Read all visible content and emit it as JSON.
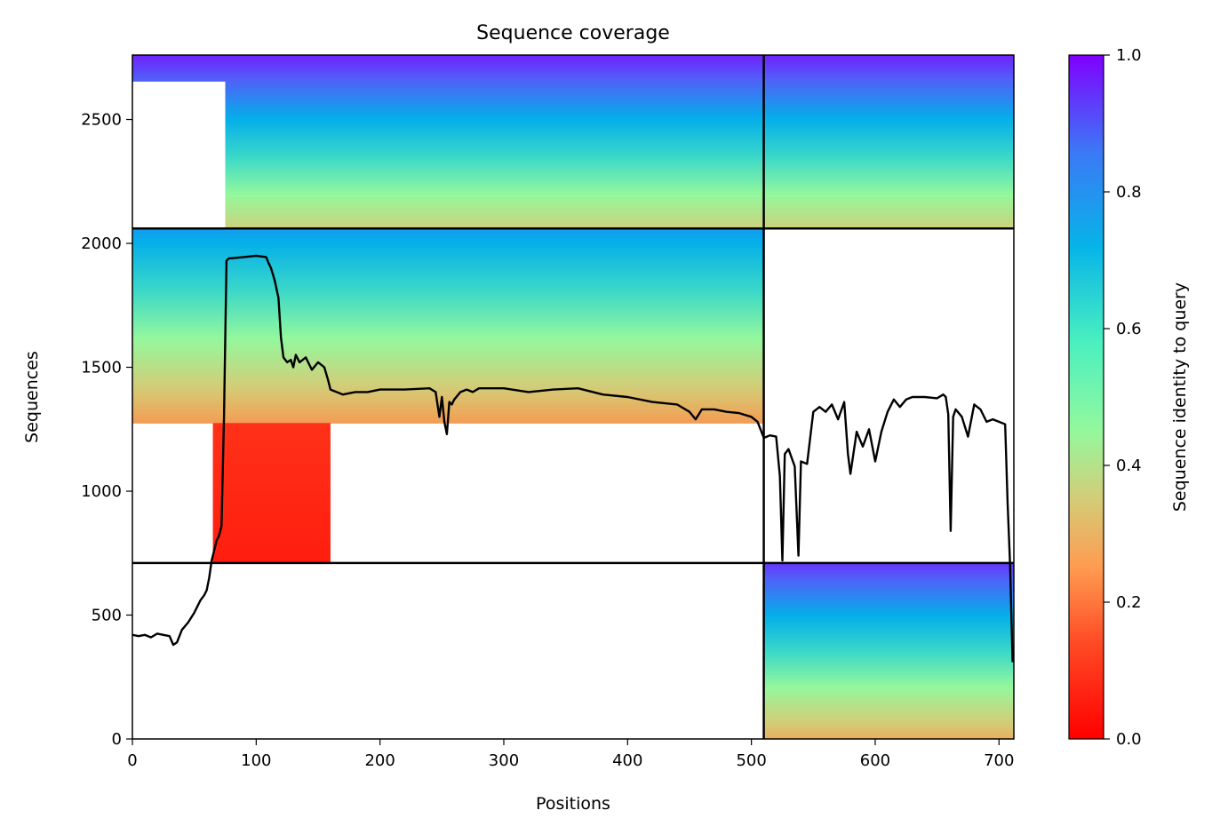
{
  "chart_data": {
    "type": "heatmap",
    "title": "Sequence coverage",
    "xlabel": "Positions",
    "ylabel": "Sequences",
    "xlim": [
      0,
      712
    ],
    "ylim": [
      0,
      2760
    ],
    "x_ticks": [
      0,
      100,
      200,
      300,
      400,
      500,
      600,
      700
    ],
    "y_ticks": [
      0,
      500,
      1000,
      1500,
      2000,
      2500
    ],
    "grid": false,
    "colorbar": {
      "label": "Sequence identity to query",
      "range": [
        0.0,
        1.0
      ],
      "ticks": [
        "0.0",
        "0.2",
        "0.4",
        "0.6",
        "0.8",
        "1.0"
      ],
      "colormap": "rainbow_r",
      "colors": [
        "#ff0000",
        "#ff8c47",
        "#d4cc77",
        "#94f89d",
        "#3ad8c9",
        "#04aeea",
        "#4f62f8",
        "#8000ff"
      ]
    },
    "chain_boundaries": {
      "positions": [
        510
      ],
      "sequences": [
        710,
        2060
      ]
    },
    "blocks": [
      {
        "name": "paired",
        "x_range": [
          0,
          712
        ],
        "y_range": [
          2060,
          2760
        ],
        "identity_top": 0.95,
        "identity_bottom": 0.3,
        "start_gap_until": 75
      },
      {
        "name": "chain A unpaired",
        "x_range": [
          0,
          510
        ],
        "y_range": [
          1275,
          2060
        ],
        "identity_top": 0.75,
        "identity_bottom": 0.18,
        "start_gap_until": 0
      },
      {
        "name": "chain A low-identity",
        "x_range": [
          65,
          160
        ],
        "y_range": [
          710,
          1275
        ],
        "identity_top": 0.05,
        "identity_bottom": 0.03,
        "start_gap_until": 0
      },
      {
        "name": "chain B unpaired",
        "x_range": [
          510,
          712
        ],
        "y_range": [
          0,
          710
        ],
        "identity_top": 0.92,
        "identity_bottom": 0.22,
        "start_gap_until": 0
      }
    ],
    "series": [
      {
        "type": "line",
        "color": "#000000",
        "x": [
          0,
          5,
          10,
          15,
          20,
          25,
          30,
          33,
          36,
          40,
          45,
          50,
          55,
          58,
          60,
          62,
          64,
          66,
          68,
          70,
          72,
          74,
          76,
          78,
          80,
          90,
          100,
          108,
          110,
          112,
          115,
          118,
          120,
          122,
          125,
          128,
          130,
          132,
          135,
          140,
          145,
          150,
          155,
          158,
          160,
          170,
          180,
          190,
          200,
          220,
          240,
          245,
          248,
          250,
          252,
          254,
          256,
          258,
          260,
          265,
          270,
          275,
          280,
          290,
          300,
          320,
          340,
          360,
          380,
          400,
          420,
          440,
          450,
          455,
          460,
          470,
          480,
          490,
          500,
          505,
          510,
          515,
          520,
          523,
          525,
          527,
          530,
          535,
          538,
          540,
          545,
          550,
          555,
          560,
          565,
          570,
          575,
          578,
          580,
          585,
          590,
          595,
          600,
          605,
          610,
          615,
          620,
          625,
          630,
          640,
          650,
          655,
          657,
          659,
          661,
          663,
          665,
          670,
          675,
          680,
          685,
          690,
          695,
          700,
          705,
          707,
          709,
          711
        ],
        "y": [
          420,
          415,
          420,
          410,
          425,
          420,
          415,
          380,
          390,
          440,
          470,
          510,
          560,
          580,
          600,
          650,
          720,
          760,
          800,
          820,
          860,
          1300,
          1930,
          1940,
          1940,
          1945,
          1950,
          1945,
          1920,
          1900,
          1850,
          1780,
          1620,
          1540,
          1520,
          1530,
          1500,
          1550,
          1520,
          1540,
          1490,
          1520,
          1500,
          1450,
          1410,
          1390,
          1400,
          1400,
          1410,
          1410,
          1415,
          1400,
          1300,
          1380,
          1280,
          1230,
          1360,
          1350,
          1370,
          1400,
          1410,
          1400,
          1415,
          1415,
          1415,
          1400,
          1410,
          1415,
          1390,
          1380,
          1360,
          1350,
          1320,
          1290,
          1330,
          1330,
          1320,
          1315,
          1300,
          1280,
          1215,
          1225,
          1220,
          1060,
          720,
          1150,
          1170,
          1100,
          740,
          1120,
          1110,
          1320,
          1340,
          1320,
          1350,
          1290,
          1360,
          1150,
          1070,
          1240,
          1180,
          1250,
          1120,
          1240,
          1320,
          1370,
          1340,
          1370,
          1380,
          1380,
          1375,
          1390,
          1380,
          1310,
          840,
          1300,
          1330,
          1300,
          1220,
          1350,
          1330,
          1280,
          1290,
          1280,
          1270,
          950,
          700,
          310
        ]
      }
    ]
  }
}
